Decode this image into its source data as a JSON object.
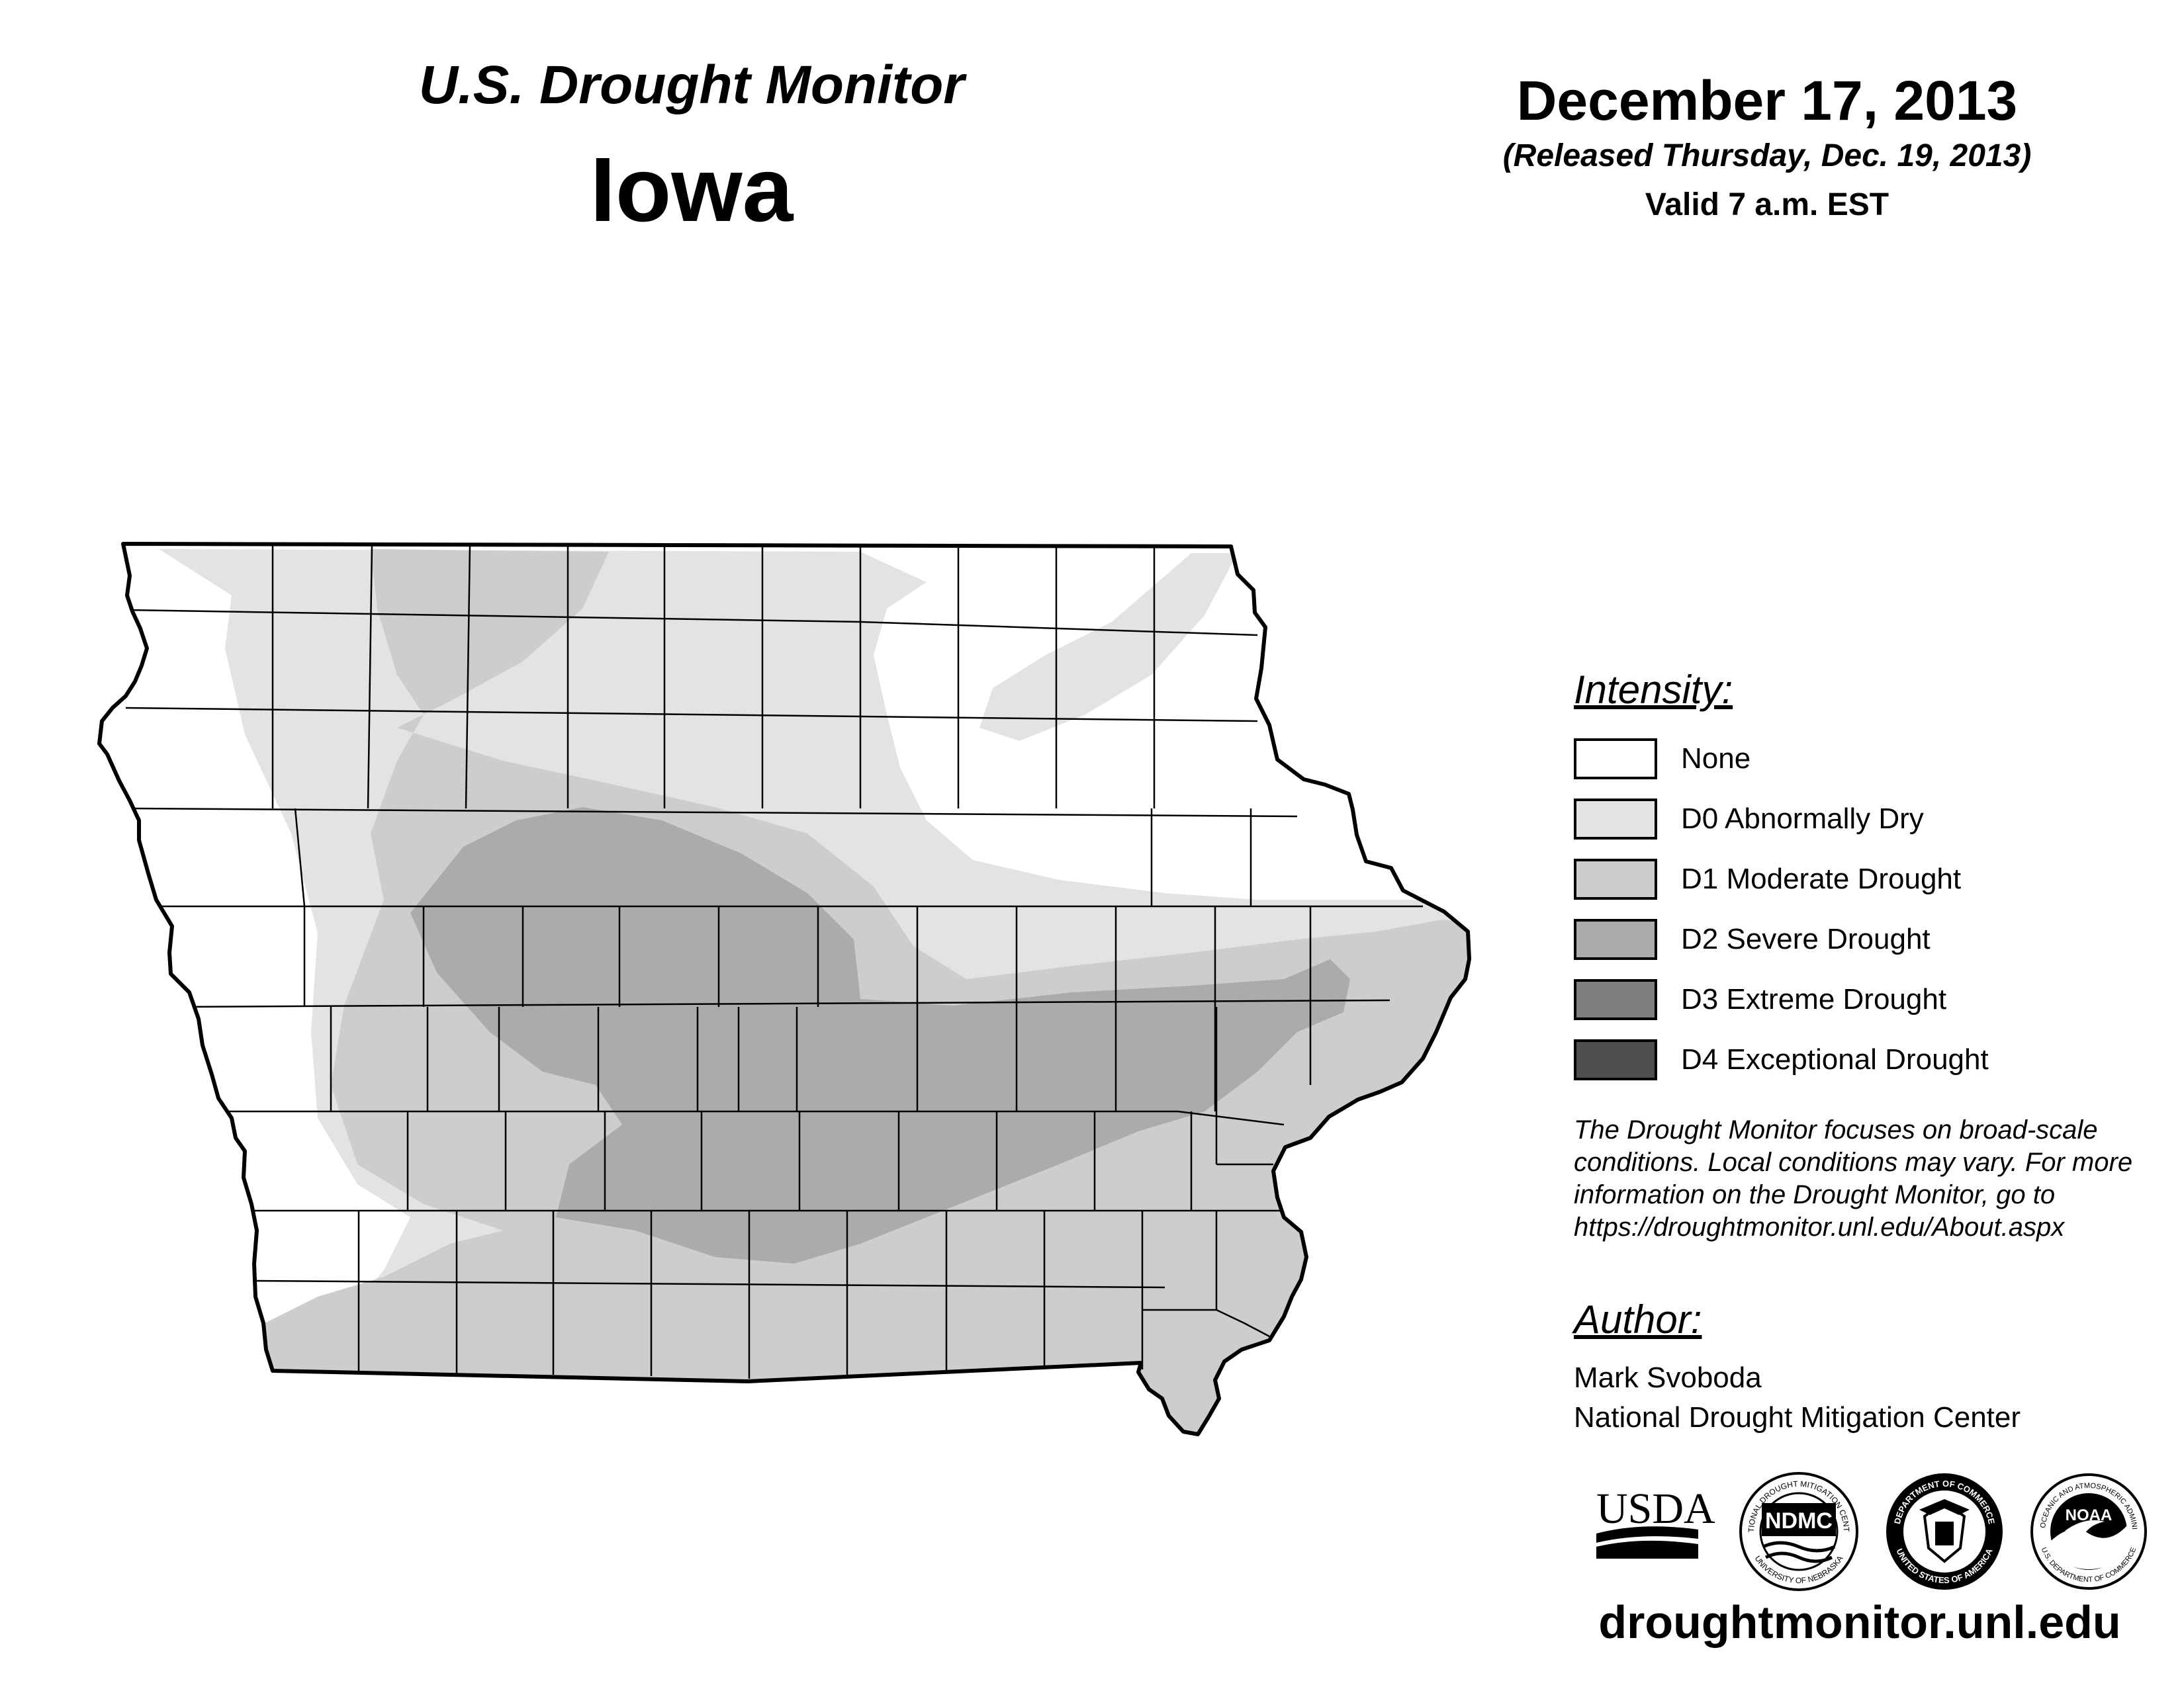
{
  "header": {
    "product": "U.S. Drought Monitor",
    "state": "Iowa",
    "date": "December 17, 2013",
    "released": "(Released Thursday, Dec. 19, 2013)",
    "valid": "Valid 7 a.m. EST"
  },
  "legend": {
    "title": "Intensity:",
    "items": [
      {
        "label": "None",
        "color": "#ffffff"
      },
      {
        "label": "D0 Abnormally Dry",
        "color": "#e3e3e3"
      },
      {
        "label": "D1 Moderate Drought",
        "color": "#cdcdcd"
      },
      {
        "label": "D2 Severe Drought",
        "color": "#ababab"
      },
      {
        "label": "D3 Extreme Drought",
        "color": "#7e7e7e"
      },
      {
        "label": "D4 Exceptional Drought",
        "color": "#4e4e4e"
      }
    ]
  },
  "note": {
    "line1": "The Drought Monitor focuses on broad-scale",
    "line2": "conditions. Local conditions may vary. For more",
    "line3": "information on the Drought Monitor, go to",
    "line4": "https://droughtmonitor.unl.edu/About.aspx"
  },
  "author": {
    "title": "Author:",
    "name": "Mark Svoboda",
    "organization": "National Drought Mitigation Center"
  },
  "logos": {
    "usda": "USDA",
    "ndmc": "NDMC",
    "ndmc_ring_top": "NATIONAL DROUGHT MITIGATION CENTER",
    "ndmc_ring_bottom": "UNIVERSITY OF NEBRASKA",
    "commerce_ring_top": "DEPARTMENT OF COMMERCE",
    "commerce_ring_bottom": "UNITED STATES OF AMERICA",
    "noaa": "NOAA",
    "noaa_ring_top": "NATIONAL OCEANIC AND ATMOSPHERIC ADMINISTRATION",
    "noaa_ring_bottom": "U.S. DEPARTMENT OF COMMERCE"
  },
  "website": "droughtmonitor.unl.edu"
}
